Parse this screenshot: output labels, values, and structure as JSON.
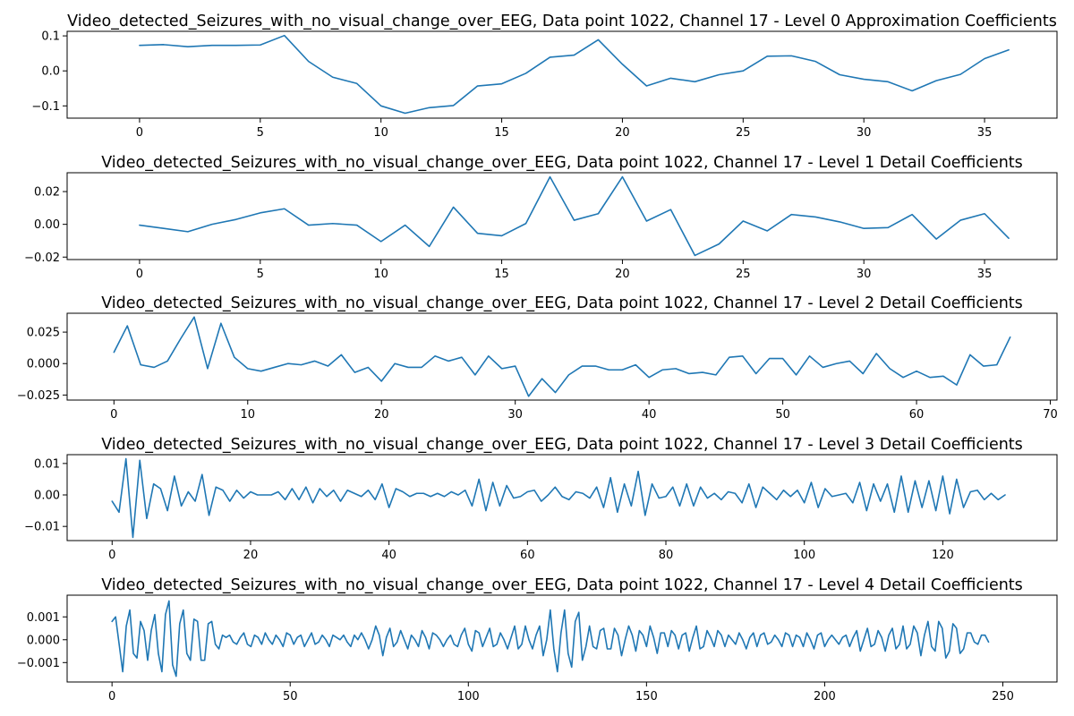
{
  "chart_data": [
    {
      "type": "line",
      "title": "Video_detected_Seizures_with_no_visual_change_over_EEG, Data point 1022, Channel 17 - Level 0 Approximation Coefficients",
      "xlim": [
        -3,
        38
      ],
      "ylim": [
        -0.135,
        0.113
      ],
      "xticks": [
        0,
        5,
        10,
        15,
        20,
        25,
        30,
        35
      ],
      "xtick_labels": [
        "0",
        "5",
        "10",
        "15",
        "20",
        "25",
        "30",
        "35"
      ],
      "yticks": [
        -0.1,
        0.0,
        0.1
      ],
      "ytick_labels": [
        "−0.1",
        "0.0",
        "0.1"
      ],
      "grid": false,
      "color": "#1f77b4",
      "y": [
        0.073,
        0.075,
        0.069,
        0.073,
        0.073,
        0.074,
        0.101,
        0.027,
        -0.018,
        -0.036,
        -0.1,
        -0.121,
        -0.105,
        -0.099,
        -0.043,
        -0.037,
        -0.007,
        0.039,
        0.045,
        0.089,
        0.019,
        -0.043,
        -0.021,
        -0.031,
        -0.011,
        0.0,
        0.042,
        0.043,
        0.027,
        -0.011,
        -0.024,
        -0.031,
        -0.057,
        -0.028,
        -0.01,
        0.035,
        0.06
      ]
    },
    {
      "type": "line",
      "title": "Video_detected_Seizures_with_no_visual_change_over_EEG, Data point 1022, Channel 17 - Level 1 Detail Coefficients",
      "xlim": [
        -3,
        38
      ],
      "ylim": [
        -0.0215,
        0.0315
      ],
      "xticks": [
        0,
        5,
        10,
        15,
        20,
        25,
        30,
        35
      ],
      "xtick_labels": [
        "0",
        "5",
        "10",
        "15",
        "20",
        "25",
        "30",
        "35"
      ],
      "yticks": [
        -0.02,
        0.0,
        0.02
      ],
      "ytick_labels": [
        "−0.02",
        "0.00",
        "0.02"
      ],
      "grid": false,
      "color": "#1f77b4",
      "y": [
        -0.0005,
        -0.0025,
        -0.0045,
        0.0,
        0.003,
        0.007,
        0.0095,
        -0.0005,
        0.0005,
        -0.0005,
        -0.0105,
        -0.0005,
        -0.0135,
        0.0105,
        -0.0055,
        -0.007,
        0.0005,
        0.029,
        0.0025,
        0.0065,
        0.029,
        0.002,
        0.009,
        -0.019,
        -0.012,
        0.002,
        -0.004,
        0.006,
        0.0045,
        0.0015,
        -0.0025,
        -0.002,
        0.006,
        -0.009,
        0.0025,
        0.0065,
        -0.0085
      ]
    },
    {
      "type": "line",
      "title": "Video_detected_Seizures_with_no_visual_change_over_EEG, Data point 1022, Channel 17 - Level 2 Detail Coefficients",
      "xlim": [
        -3.5,
        70.5
      ],
      "ylim": [
        -0.029,
        0.04
      ],
      "xticks": [
        0,
        10,
        20,
        30,
        40,
        50,
        60,
        70
      ],
      "xtick_labels": [
        "0",
        "10",
        "20",
        "30",
        "40",
        "50",
        "60",
        "70"
      ],
      "yticks": [
        -0.025,
        0.0,
        0.025
      ],
      "ytick_labels": [
        "−0.025",
        "0.000",
        "0.025"
      ],
      "grid": false,
      "color": "#1f77b4",
      "y": [
        0.009,
        0.03,
        -0.001,
        -0.003,
        0.002,
        0.02,
        0.037,
        -0.004,
        0.032,
        0.005,
        -0.004,
        -0.006,
        -0.003,
        0.0,
        -0.001,
        0.002,
        -0.002,
        0.007,
        -0.007,
        -0.003,
        -0.014,
        0.0,
        -0.003,
        -0.003,
        0.006,
        0.002,
        0.005,
        -0.009,
        0.006,
        -0.004,
        -0.002,
        -0.026,
        -0.012,
        -0.023,
        -0.009,
        -0.002,
        -0.002,
        -0.005,
        -0.005,
        -0.001,
        -0.011,
        -0.005,
        -0.004,
        -0.008,
        -0.007,
        -0.009,
        0.005,
        0.006,
        -0.008,
        0.004,
        0.004,
        -0.009,
        0.006,
        -0.003,
        0.0,
        0.002,
        -0.008,
        0.008,
        -0.004,
        -0.011,
        -0.006,
        -0.011,
        -0.01,
        -0.017,
        0.007,
        -0.002,
        -0.001,
        0.021
      ]
    },
    {
      "type": "line",
      "title": "Video_detected_Seizures_with_no_visual_change_over_EEG, Data point 1022, Channel 17 - Level 3 Detail Coefficients",
      "xlim": [
        -6.5,
        136.5
      ],
      "ylim": [
        -0.0145,
        0.0128
      ],
      "xticks": [
        0,
        20,
        40,
        60,
        80,
        100,
        120
      ],
      "xtick_labels": [
        "0",
        "20",
        "40",
        "60",
        "80",
        "100",
        "120"
      ],
      "yticks": [
        -0.01,
        0.0,
        0.01
      ],
      "ytick_labels": [
        "−0.01",
        "0.00",
        "0.01"
      ],
      "grid": false,
      "color": "#1f77b4",
      "y": [
        -0.002,
        -0.0055,
        0.0115,
        -0.0135,
        0.011,
        -0.0075,
        0.0035,
        0.002,
        -0.005,
        0.006,
        -0.0035,
        0.001,
        -0.002,
        0.0065,
        -0.0065,
        0.0025,
        0.0015,
        -0.002,
        0.0015,
        -0.001,
        0.001,
        0.0,
        0.0,
        0.0,
        0.001,
        -0.0015,
        0.002,
        -0.0015,
        0.0025,
        -0.0025,
        0.002,
        -0.0005,
        0.0015,
        -0.002,
        0.0015,
        0.0005,
        -0.0005,
        0.0015,
        -0.0015,
        0.0035,
        -0.004,
        0.002,
        0.001,
        -0.0005,
        0.0005,
        0.0005,
        -0.0005,
        0.0005,
        -0.0005,
        0.001,
        0.0,
        0.0015,
        -0.0035,
        0.005,
        -0.005,
        0.004,
        -0.0035,
        0.003,
        -0.001,
        -0.0005,
        0.001,
        0.0015,
        -0.002,
        0.0,
        0.0025,
        -0.0005,
        -0.0015,
        0.001,
        0.0005,
        -0.001,
        0.0025,
        -0.004,
        0.0055,
        -0.0055,
        0.0035,
        -0.0035,
        0.0075,
        -0.0065,
        0.0035,
        -0.001,
        -0.0005,
        0.0025,
        -0.0035,
        0.0035,
        -0.0035,
        0.0025,
        -0.001,
        0.0005,
        -0.0015,
        0.001,
        0.0005,
        -0.0025,
        0.0035,
        -0.004,
        0.0025,
        0.0005,
        -0.0015,
        0.0015,
        -0.0005,
        0.0015,
        -0.0025,
        0.004,
        -0.004,
        0.002,
        -0.0005,
        0.0,
        0.0005,
        -0.0025,
        0.004,
        -0.005,
        0.0035,
        -0.002,
        0.0035,
        -0.0055,
        0.006,
        -0.0055,
        0.0045,
        -0.004,
        0.0045,
        -0.005,
        0.006,
        -0.006,
        0.005,
        -0.004,
        0.001,
        0.0015,
        -0.0015,
        0.0005,
        -0.0015,
        0.0
      ]
    },
    {
      "type": "line",
      "title": "Video_detected_Seizures_with_no_visual_change_over_EEG, Data point 1022, Channel 17 - Level 4 Detail Coefficients",
      "xlim": [
        -12.6,
        265.2
      ],
      "ylim": [
        -0.00185,
        0.00195
      ],
      "xticks": [
        0,
        50,
        100,
        150,
        200,
        250
      ],
      "xtick_labels": [
        "0",
        "50",
        "100",
        "150",
        "200",
        "250"
      ],
      "yticks": [
        -0.001,
        0.0,
        0.001
      ],
      "ytick_labels": [
        "−0.001",
        "0.000",
        "0.001"
      ],
      "grid": false,
      "color": "#1f77b4",
      "y": [
        0.0008,
        0.001,
        -0.0002,
        -0.0014,
        0.0006,
        0.0013,
        -0.0006,
        -0.0008,
        0.0008,
        0.0004,
        -0.0009,
        0.0004,
        0.0011,
        -0.0006,
        -0.0014,
        0.0011,
        0.0017,
        -0.0011,
        -0.0016,
        0.0007,
        0.0013,
        -0.0006,
        -0.0009,
        0.0009,
        0.0008,
        -0.0009,
        -0.0009,
        0.0007,
        0.0008,
        -0.0002,
        -0.0004,
        0.0002,
        0.0001,
        0.0002,
        -0.0001,
        -0.0002,
        0.0001,
        0.0003,
        -0.0002,
        -0.0003,
        0.0002,
        0.0001,
        -0.0002,
        0.0003,
        0.0,
        -0.0002,
        0.0002,
        0.0,
        -0.0003,
        0.0003,
        0.0002,
        -0.0002,
        0.0001,
        0.0002,
        -0.0003,
        0.0,
        0.0003,
        -0.0002,
        -0.0001,
        0.0002,
        0.0,
        -0.0003,
        0.0002,
        0.0001,
        0.0,
        0.0002,
        -0.0001,
        -0.0003,
        0.0002,
        0.0,
        0.0003,
        0.0,
        -0.0004,
        0.0,
        0.0006,
        0.0002,
        -0.0007,
        0.0001,
        0.0005,
        -0.0003,
        -0.0001,
        0.0004,
        0.0,
        -0.0004,
        0.0002,
        0.0,
        -0.0003,
        0.0004,
        0.0001,
        -0.0004,
        0.0003,
        0.0002,
        0.0,
        -0.0003,
        0.0,
        0.0002,
        -0.0002,
        -0.0003,
        0.0002,
        0.0005,
        -0.0002,
        -0.0005,
        0.0004,
        0.0003,
        -0.0003,
        0.0001,
        0.0005,
        -0.0003,
        -0.0002,
        0.0003,
        0.0,
        -0.0004,
        0.0001,
        0.0006,
        -0.0004,
        -0.0002,
        0.0006,
        0.0,
        -0.0004,
        0.0002,
        0.0006,
        -0.0007,
        0.0,
        0.0013,
        -0.0004,
        -0.0014,
        0.0003,
        0.0013,
        -0.0006,
        -0.0012,
        0.0008,
        0.0012,
        -0.0009,
        -0.0003,
        0.0006,
        -0.0003,
        -0.0004,
        0.0004,
        0.0005,
        -0.0004,
        -0.0004,
        0.0005,
        0.0002,
        -0.0007,
        0.0,
        0.0006,
        0.0002,
        -0.0005,
        0.0004,
        0.0002,
        -0.0003,
        0.0006,
        0.0001,
        -0.0006,
        0.0003,
        0.0003,
        -0.0003,
        0.0004,
        0.0002,
        -0.0004,
        0.0002,
        0.0003,
        -0.0005,
        0.0001,
        0.0006,
        -0.0004,
        -0.0003,
        0.0004,
        0.0001,
        -0.0003,
        0.0004,
        0.0002,
        -0.0003,
        0.0002,
        0.0,
        -0.0002,
        0.0003,
        0.0,
        -0.0004,
        0.0001,
        0.0003,
        -0.0003,
        0.0002,
        0.0003,
        -0.0002,
        -0.0001,
        0.0002,
        0.0,
        -0.0003,
        0.0003,
        0.0002,
        -0.0003,
        0.0002,
        0.0001,
        -0.0003,
        0.0003,
        0.0,
        -0.0004,
        0.0002,
        0.0003,
        -0.0003,
        0.0,
        0.0002,
        0.0,
        -0.0002,
        0.0001,
        0.0002,
        -0.0003,
        0.0001,
        0.0004,
        -0.0005,
        0.0,
        0.0005,
        -0.0003,
        -0.0002,
        0.0004,
        0.0001,
        -0.0005,
        0.0002,
        0.0005,
        -0.0004,
        -0.0002,
        0.0006,
        -0.0004,
        -0.0002,
        0.0006,
        0.0003,
        -0.0007,
        0.0002,
        0.0008,
        -0.0003,
        -0.0005,
        0.0008,
        0.0005,
        -0.0008,
        -0.0005,
        0.0007,
        0.0005,
        -0.0006,
        -0.0004,
        0.0003,
        0.0003,
        -0.0001,
        -0.0002,
        0.0002,
        0.0002,
        -0.0001
      ]
    }
  ]
}
